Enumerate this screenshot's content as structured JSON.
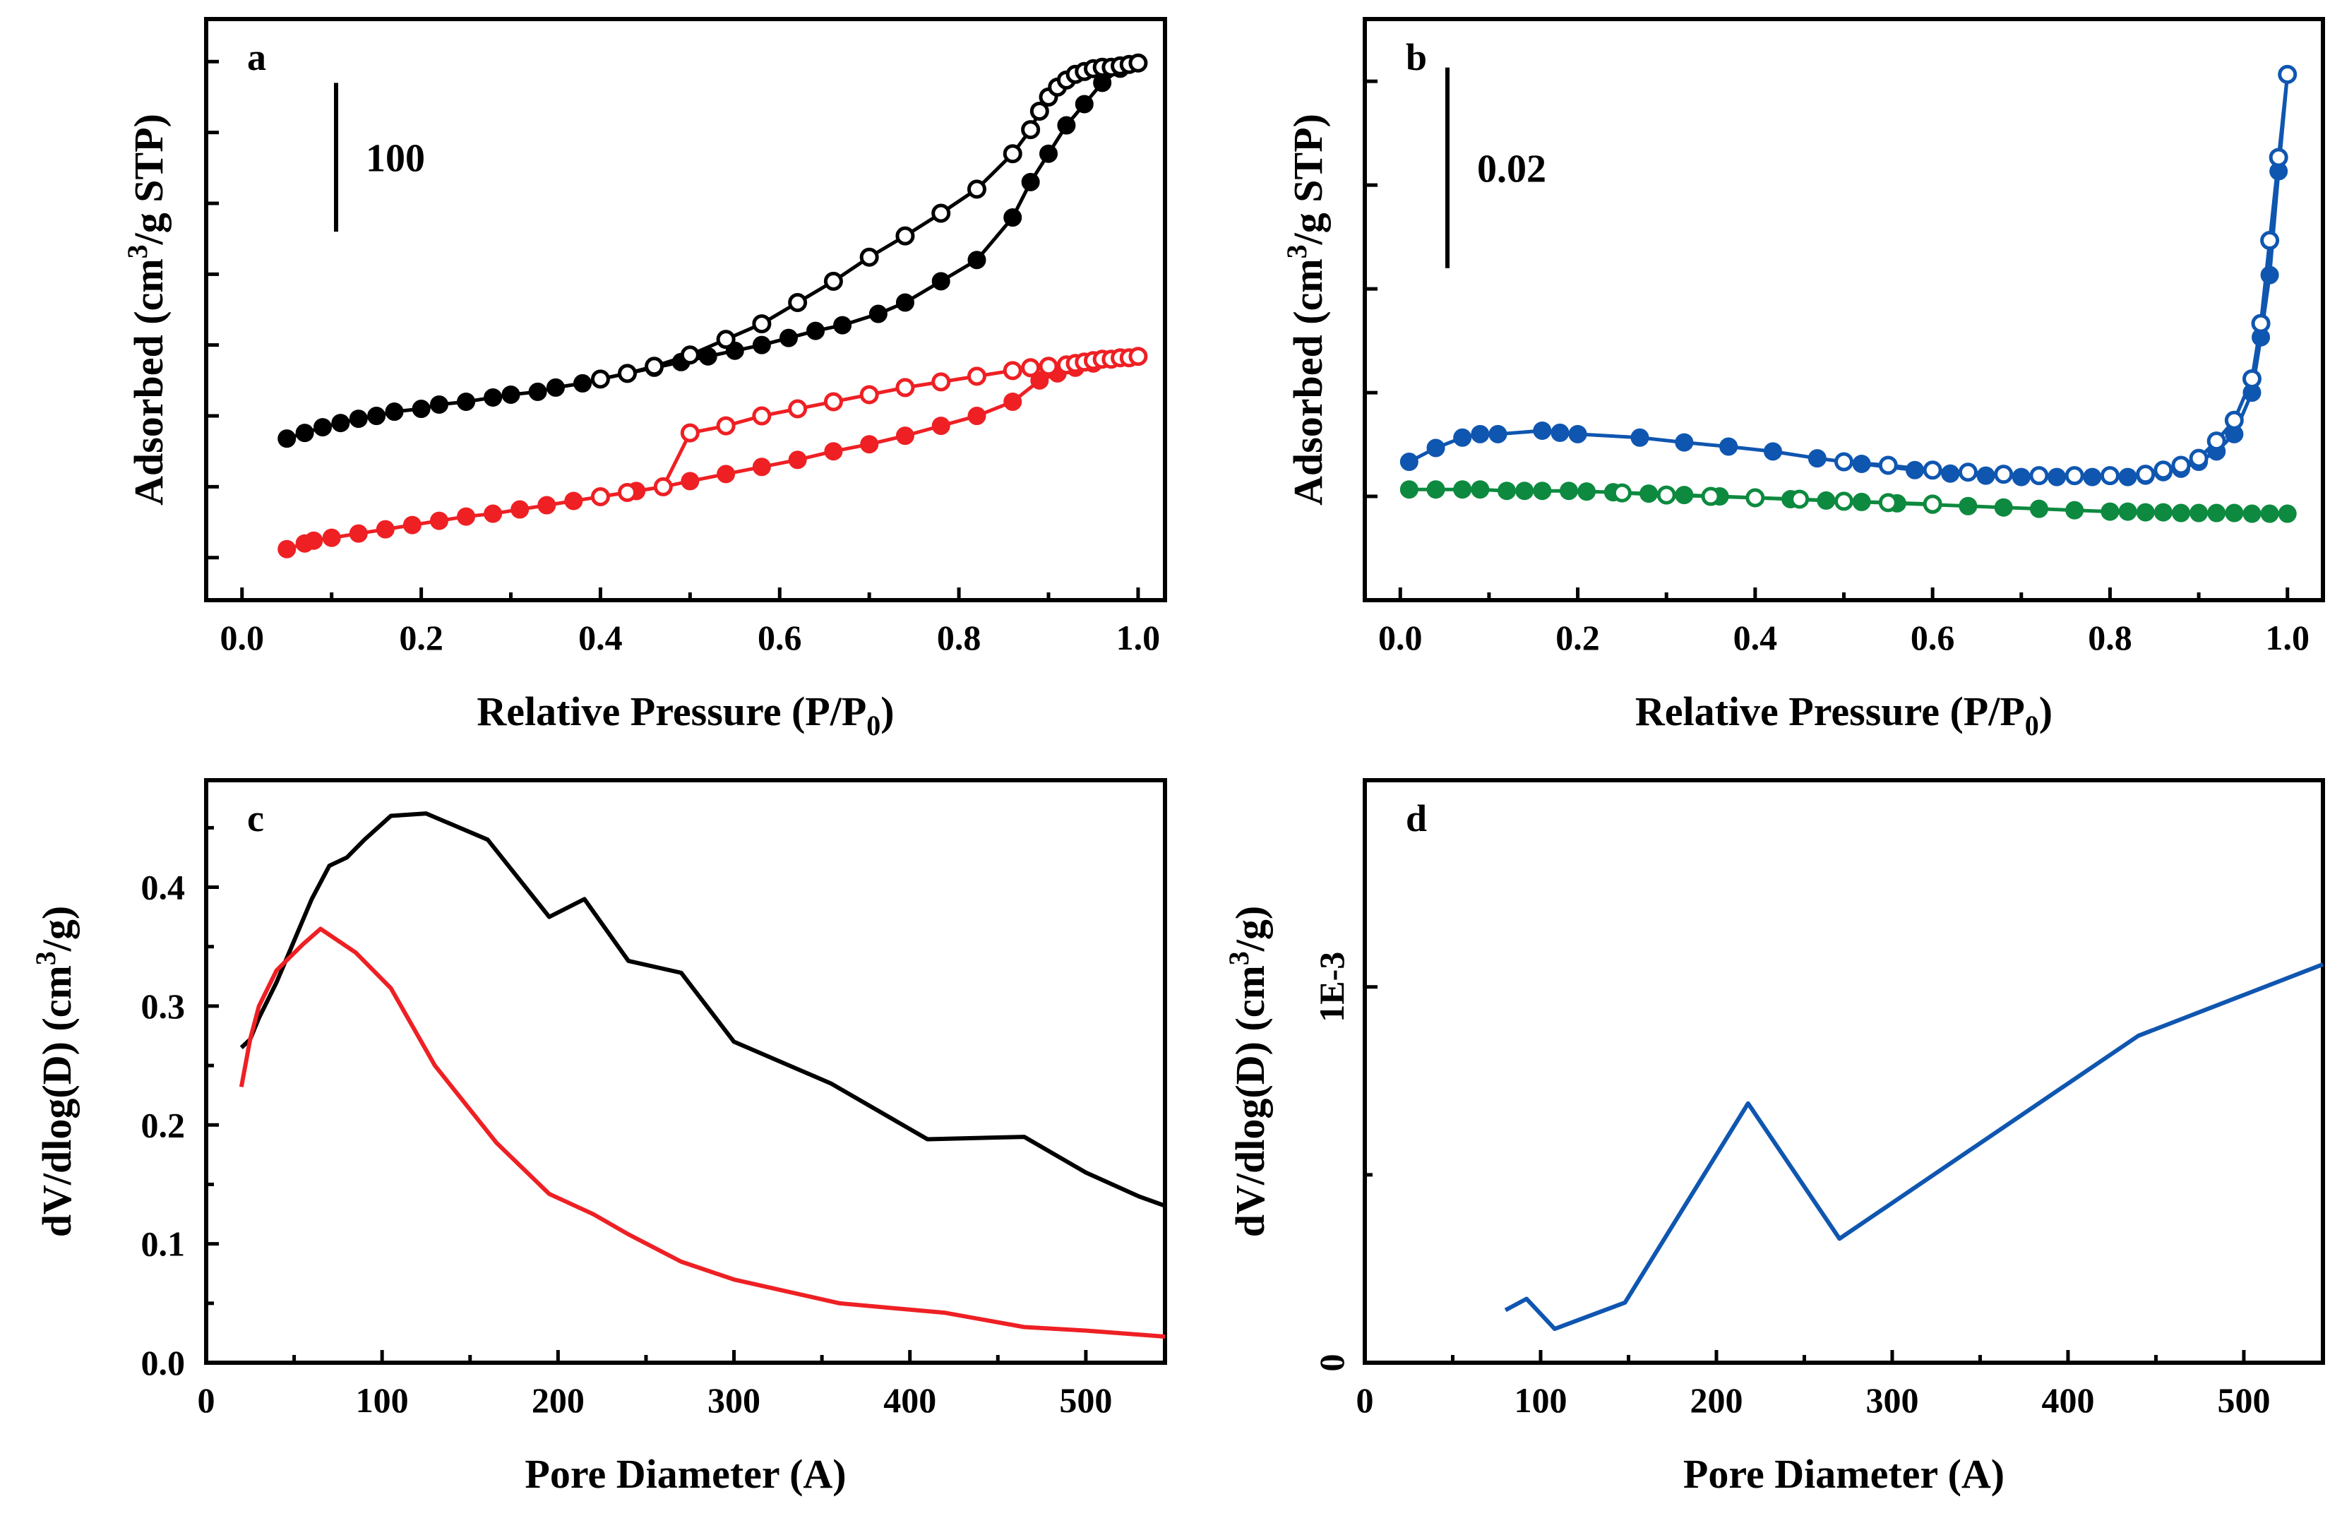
{
  "colors": {
    "black": "#000000",
    "red": "#ee2024",
    "blue": "#0f56b0",
    "green": "#0d8a3f"
  },
  "chart_data": [
    {
      "id": "a",
      "type": "scatter",
      "panel_label": "a",
      "xlabel": "Relative Pressure (P/P",
      "xlabel_sub": "0",
      "xlabel_end": ")",
      "ylabel": "Adsorbed (cm",
      "ylabel_sup": "3",
      "ylabel_end": "/g STP)",
      "xlim": [
        -0.04,
        1.03
      ],
      "ylim": [
        0,
        41
      ],
      "x_ticks": [
        0.0,
        0.2,
        0.4,
        0.6,
        0.8,
        1.0
      ],
      "x_tick_labels": [
        "0.0",
        "0.2",
        "0.4",
        "0.6",
        "0.8",
        "1.0"
      ],
      "x_minor_ticks": [
        0.1,
        0.3,
        0.5,
        0.7,
        0.9
      ],
      "y_ticks": [
        3,
        8,
        13,
        18,
        23,
        28,
        33,
        38
      ],
      "scale_bar": {
        "y0": 26,
        "y1": 36.5,
        "label": "100"
      },
      "series": [
        {
          "name": "black-adsorption",
          "color": "black",
          "marker": "filled",
          "x": [
            0.05,
            0.07,
            0.09,
            0.11,
            0.13,
            0.15,
            0.17,
            0.2,
            0.22,
            0.25,
            0.28,
            0.3,
            0.33,
            0.35,
            0.38,
            0.4,
            0.43,
            0.46,
            0.49,
            0.52,
            0.55,
            0.58,
            0.61,
            0.64,
            0.67,
            0.71,
            0.74,
            0.78,
            0.82,
            0.86,
            0.88,
            0.9,
            0.92,
            0.94,
            0.96,
            0.98,
            1.0
          ],
          "y": [
            11.4,
            11.8,
            12.2,
            12.5,
            12.8,
            13.0,
            13.3,
            13.5,
            13.8,
            14.0,
            14.3,
            14.5,
            14.7,
            15.0,
            15.3,
            15.6,
            16.0,
            16.4,
            16.8,
            17.2,
            17.6,
            18.0,
            18.5,
            19.0,
            19.4,
            20.2,
            21.0,
            22.5,
            24.0,
            27.0,
            29.5,
            31.5,
            33.5,
            35.0,
            36.5,
            37.5,
            37.9
          ]
        },
        {
          "name": "black-desorption",
          "color": "black",
          "marker": "open",
          "x": [
            0.4,
            0.43,
            0.46,
            0.5,
            0.54,
            0.58,
            0.62,
            0.66,
            0.7,
            0.74,
            0.78,
            0.82,
            0.86,
            0.88,
            0.89,
            0.9,
            0.91,
            0.92,
            0.93,
            0.94,
            0.95,
            0.96,
            0.97,
            0.98,
            0.99,
            1.0
          ],
          "y": [
            15.6,
            16.0,
            16.5,
            17.3,
            18.4,
            19.5,
            21.0,
            22.5,
            24.2,
            25.7,
            27.3,
            29.0,
            31.5,
            33.2,
            34.5,
            35.5,
            36.2,
            36.7,
            37.1,
            37.3,
            37.5,
            37.6,
            37.6,
            37.7,
            37.8,
            37.9
          ]
        },
        {
          "name": "red-adsorption",
          "color": "red",
          "marker": "filled",
          "x": [
            0.05,
            0.07,
            0.08,
            0.1,
            0.13,
            0.16,
            0.19,
            0.22,
            0.25,
            0.28,
            0.31,
            0.34,
            0.37,
            0.4,
            0.44,
            0.47,
            0.5,
            0.54,
            0.58,
            0.62,
            0.66,
            0.7,
            0.74,
            0.78,
            0.82,
            0.86,
            0.89,
            0.91,
            0.93,
            0.95,
            0.97,
            0.99,
            1.0
          ],
          "y": [
            3.6,
            4.0,
            4.2,
            4.4,
            4.7,
            5.0,
            5.3,
            5.6,
            5.9,
            6.1,
            6.4,
            6.7,
            7.0,
            7.3,
            7.7,
            8.0,
            8.4,
            8.9,
            9.4,
            9.9,
            10.5,
            11.0,
            11.6,
            12.3,
            13.0,
            14.0,
            15.5,
            16.0,
            16.4,
            16.7,
            17.0,
            17.1,
            17.2
          ]
        },
        {
          "name": "red-desorption",
          "color": "red",
          "marker": "open",
          "x": [
            0.4,
            0.43,
            0.47,
            0.5,
            0.54,
            0.58,
            0.62,
            0.66,
            0.7,
            0.74,
            0.78,
            0.82,
            0.86,
            0.88,
            0.9,
            0.92,
            0.93,
            0.94,
            0.95,
            0.96,
            0.97,
            0.98,
            0.99,
            1.0
          ],
          "y": [
            7.3,
            7.6,
            8.0,
            11.8,
            12.3,
            13.0,
            13.5,
            14.0,
            14.5,
            15.0,
            15.4,
            15.8,
            16.2,
            16.4,
            16.5,
            16.6,
            16.7,
            16.8,
            16.9,
            17.0,
            17.0,
            17.1,
            17.1,
            17.2
          ]
        }
      ]
    },
    {
      "id": "b",
      "type": "scatter",
      "panel_label": "b",
      "xlabel": "Relative Pressure (P/P",
      "xlabel_sub": "0",
      "xlabel_end": ")",
      "ylabel": "Adsorbed (cm",
      "ylabel_sup": "3",
      "ylabel_end": "/g STP)",
      "xlim": [
        -0.04,
        1.04
      ],
      "ylim": [
        0,
        8.4
      ],
      "x_ticks": [
        0.0,
        0.2,
        0.4,
        0.6,
        0.8,
        1.0
      ],
      "x_tick_labels": [
        "0.0",
        "0.2",
        "0.4",
        "0.6",
        "0.8",
        "1.0"
      ],
      "x_minor_ticks": [
        0.1,
        0.3,
        0.5,
        0.7,
        0.9
      ],
      "y_ticks": [
        1.5,
        3.0,
        4.5,
        6.0,
        7.5
      ],
      "scale_bar": {
        "y0": 4.8,
        "y1": 7.7,
        "label": "0.02"
      },
      "series": [
        {
          "name": "blue-adsorption",
          "color": "blue",
          "marker": "filled",
          "x": [
            0.01,
            0.04,
            0.07,
            0.09,
            0.11,
            0.16,
            0.18,
            0.2,
            0.27,
            0.32,
            0.37,
            0.42,
            0.47,
            0.52,
            0.58,
            0.62,
            0.66,
            0.7,
            0.74,
            0.78,
            0.82,
            0.84,
            0.86,
            0.88,
            0.9,
            0.92,
            0.94,
            0.96,
            0.97,
            0.98,
            0.99,
            1.0
          ],
          "y": [
            2.0,
            2.2,
            2.35,
            2.4,
            2.4,
            2.45,
            2.42,
            2.4,
            2.35,
            2.28,
            2.22,
            2.15,
            2.05,
            1.97,
            1.88,
            1.83,
            1.8,
            1.78,
            1.78,
            1.78,
            1.78,
            1.8,
            1.85,
            1.9,
            2.0,
            2.15,
            2.4,
            3.0,
            3.8,
            4.7,
            6.2,
            7.6
          ]
        },
        {
          "name": "blue-desorption",
          "color": "blue",
          "marker": "open",
          "x": [
            0.5,
            0.55,
            0.6,
            0.64,
            0.68,
            0.72,
            0.76,
            0.8,
            0.84,
            0.86,
            0.88,
            0.9,
            0.92,
            0.94,
            0.96,
            0.97,
            0.98,
            0.99,
            1.0
          ],
          "y": [
            2.0,
            1.95,
            1.88,
            1.85,
            1.82,
            1.8,
            1.8,
            1.8,
            1.82,
            1.88,
            1.95,
            2.05,
            2.3,
            2.6,
            3.2,
            4.0,
            5.2,
            6.4,
            7.6
          ]
        },
        {
          "name": "green-adsorption",
          "color": "green",
          "marker": "filled",
          "x": [
            0.01,
            0.04,
            0.07,
            0.09,
            0.12,
            0.14,
            0.16,
            0.19,
            0.21,
            0.24,
            0.28,
            0.32,
            0.36,
            0.4,
            0.44,
            0.48,
            0.52,
            0.56,
            0.6,
            0.64,
            0.68,
            0.72,
            0.76,
            0.8,
            0.82,
            0.84,
            0.86,
            0.88,
            0.9,
            0.92,
            0.94,
            0.96,
            0.98,
            1.0
          ],
          "y": [
            1.6,
            1.6,
            1.6,
            1.6,
            1.58,
            1.58,
            1.58,
            1.58,
            1.57,
            1.56,
            1.54,
            1.52,
            1.5,
            1.48,
            1.46,
            1.44,
            1.42,
            1.4,
            1.38,
            1.36,
            1.34,
            1.32,
            1.3,
            1.28,
            1.28,
            1.27,
            1.27,
            1.26,
            1.26,
            1.26,
            1.26,
            1.25,
            1.25,
            1.25
          ]
        },
        {
          "name": "green-desorption",
          "color": "green",
          "marker": "open",
          "x": [
            0.25,
            0.3,
            0.35,
            0.4,
            0.45,
            0.5,
            0.55,
            0.6
          ],
          "y": [
            1.55,
            1.52,
            1.5,
            1.48,
            1.46,
            1.43,
            1.41,
            1.39
          ]
        }
      ]
    },
    {
      "id": "c",
      "type": "line",
      "panel_label": "c",
      "xlabel": "Pore Diameter (A)",
      "ylabel": "dV/dlog(D) (cm",
      "ylabel_sup": "3",
      "ylabel_end": "/g)",
      "xlim": [
        0,
        545
      ],
      "ylim": [
        0,
        0.49
      ],
      "x_ticks": [
        0,
        100,
        200,
        300,
        400,
        500
      ],
      "x_tick_labels": [
        "0",
        "100",
        "200",
        "300",
        "400",
        "500"
      ],
      "x_minor_ticks": [
        50,
        150,
        250,
        350,
        450
      ],
      "y_ticks": [
        0.0,
        0.1,
        0.2,
        0.3,
        0.4
      ],
      "y_tick_labels": [
        "0.0",
        "0.1",
        "0.2",
        "0.3",
        "0.4"
      ],
      "y_minor_ticks": [
        0.05,
        0.15,
        0.25,
        0.35,
        0.45
      ],
      "series": [
        {
          "name": "black-psd",
          "color": "black",
          "x": [
            20,
            25,
            30,
            40,
            50,
            60,
            70,
            80,
            90,
            105,
            125,
            160,
            195,
            215,
            240,
            270,
            300,
            355,
            410,
            465,
            500,
            530,
            545
          ],
          "y": [
            0.265,
            0.272,
            0.29,
            0.32,
            0.355,
            0.39,
            0.418,
            0.425,
            0.44,
            0.46,
            0.462,
            0.44,
            0.375,
            0.39,
            0.338,
            0.328,
            0.27,
            0.235,
            0.188,
            0.19,
            0.16,
            0.14,
            0.132
          ]
        },
        {
          "name": "red-psd",
          "color": "red",
          "x": [
            20,
            25,
            30,
            40,
            55,
            65,
            85,
            105,
            130,
            165,
            195,
            220,
            240,
            270,
            300,
            360,
            420,
            465,
            500,
            545
          ],
          "y": [
            0.232,
            0.272,
            0.3,
            0.33,
            0.352,
            0.365,
            0.345,
            0.315,
            0.25,
            0.185,
            0.142,
            0.125,
            0.108,
            0.085,
            0.07,
            0.05,
            0.042,
            0.03,
            0.027,
            0.022
          ]
        }
      ]
    },
    {
      "id": "d",
      "type": "line",
      "panel_label": "d",
      "xlabel": "Pore Diameter (A)",
      "ylabel": "dV/dlog(D) (cm",
      "ylabel_sup": "3",
      "ylabel_end": "/g)",
      "xlim": [
        0,
        545
      ],
      "ylim": [
        0,
        0.00155
      ],
      "x_ticks": [
        0,
        100,
        200,
        300,
        400,
        500
      ],
      "x_tick_labels": [
        "0",
        "100",
        "200",
        "300",
        "400",
        "500"
      ],
      "x_minor_ticks": [
        50,
        150,
        250,
        350,
        450
      ],
      "y_ticks": [
        0,
        0.001
      ],
      "y_tick_labels": [
        "0",
        "1E-3"
      ],
      "y_minor_ticks": [
        0.0005
      ],
      "series": [
        {
          "name": "blue-psd",
          "color": "blue",
          "x": [
            80,
            92,
            108,
            148,
            218,
            270,
            440,
            545
          ],
          "y": [
            0.00014,
            0.00017,
            9e-05,
            0.00016,
            0.00069,
            0.00033,
            0.00087,
            0.00106
          ]
        }
      ]
    }
  ]
}
